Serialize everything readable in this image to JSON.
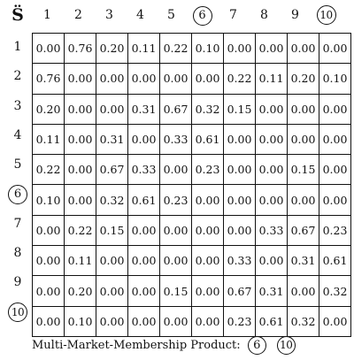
{
  "corner_label": "S̈",
  "columns": [
    {
      "label": "1",
      "circled": false
    },
    {
      "label": "2",
      "circled": false
    },
    {
      "label": "3",
      "circled": false
    },
    {
      "label": "4",
      "circled": false
    },
    {
      "label": "5",
      "circled": false
    },
    {
      "label": "6",
      "circled": true
    },
    {
      "label": "7",
      "circled": false
    },
    {
      "label": "8",
      "circled": false
    },
    {
      "label": "9",
      "circled": false
    },
    {
      "label": "10",
      "circled": true
    }
  ],
  "rows": [
    {
      "label": "1",
      "circled": false,
      "values": [
        "0.00",
        "0.76",
        "0.20",
        "0.11",
        "0.22",
        "0.10",
        "0.00",
        "0.00",
        "0.00",
        "0.00"
      ]
    },
    {
      "label": "2",
      "circled": false,
      "values": [
        "0.76",
        "0.00",
        "0.00",
        "0.00",
        "0.00",
        "0.00",
        "0.22",
        "0.11",
        "0.20",
        "0.10"
      ]
    },
    {
      "label": "3",
      "circled": false,
      "values": [
        "0.20",
        "0.00",
        "0.00",
        "0.31",
        "0.67",
        "0.32",
        "0.15",
        "0.00",
        "0.00",
        "0.00"
      ]
    },
    {
      "label": "4",
      "circled": false,
      "values": [
        "0.11",
        "0.00",
        "0.31",
        "0.00",
        "0.33",
        "0.61",
        "0.00",
        "0.00",
        "0.00",
        "0.00"
      ]
    },
    {
      "label": "5",
      "circled": false,
      "values": [
        "0.22",
        "0.00",
        "0.67",
        "0.33",
        "0.00",
        "0.23",
        "0.00",
        "0.00",
        "0.15",
        "0.00"
      ]
    },
    {
      "label": "6",
      "circled": true,
      "values": [
        "0.10",
        "0.00",
        "0.32",
        "0.61",
        "0.23",
        "0.00",
        "0.00",
        "0.00",
        "0.00",
        "0.00"
      ]
    },
    {
      "label": "7",
      "circled": false,
      "values": [
        "0.00",
        "0.22",
        "0.15",
        "0.00",
        "0.00",
        "0.00",
        "0.00",
        "0.33",
        "0.67",
        "0.23"
      ]
    },
    {
      "label": "8",
      "circled": false,
      "values": [
        "0.00",
        "0.11",
        "0.00",
        "0.00",
        "0.00",
        "0.00",
        "0.33",
        "0.00",
        "0.31",
        "0.61"
      ]
    },
    {
      "label": "9",
      "circled": false,
      "values": [
        "0.00",
        "0.20",
        "0.00",
        "0.00",
        "0.15",
        "0.00",
        "0.67",
        "0.31",
        "0.00",
        "0.32"
      ]
    },
    {
      "label": "10",
      "circled": true,
      "values": [
        "0.00",
        "0.10",
        "0.00",
        "0.00",
        "0.00",
        "0.00",
        "0.23",
        "0.61",
        "0.32",
        "0.00"
      ]
    }
  ],
  "caption": {
    "text": "Multi-Market-Membership Product:",
    "items": [
      "6",
      "10"
    ]
  }
}
